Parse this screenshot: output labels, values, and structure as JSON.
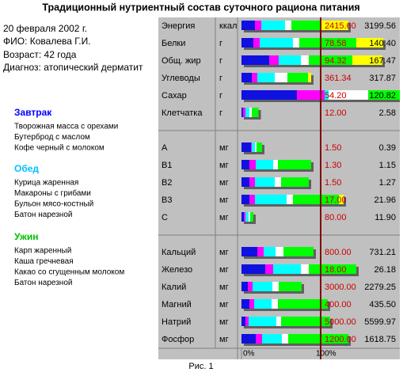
{
  "title": "Традиционный нутриентный состав суточного рациона питания",
  "patient": {
    "date": "20 февраля 2002 г.",
    "name": "ФИО: Ковалева Г.И.",
    "age": "Возраст: 42 года",
    "diagnosis": "Диагноз: атопический дерматит"
  },
  "meals": [
    {
      "name": "Завтрак",
      "color": "#0000ff",
      "items": [
        "Творожная масса с орехами",
        "Бутерброд с маслом",
        "Кофе черный с молоком"
      ]
    },
    {
      "name": "Обед",
      "color": "#00c0ff",
      "items": [
        "Курица жаренная",
        "Макароны с грибами",
        "Бульон мясо-костный",
        "Батон нарезной"
      ]
    },
    {
      "name": "Ужин",
      "color": "#00c000",
      "items": [
        "Карп жаренный",
        "Каша гречневая",
        "Какао со сгущенным молоком",
        "Батон нарезной"
      ]
    }
  ],
  "caption": "Рис. 1",
  "chart_data": {
    "type": "bar",
    "categories": [
      "Энергия",
      "Белки",
      "Общ. жир",
      "Углеводы",
      "Сахар",
      "Клетчатка",
      "A",
      "B1",
      "B2",
      "B3",
      "C",
      "Кальций",
      "Железо",
      "Калий",
      "Магний",
      "Натрий",
      "Фосфор"
    ],
    "units": [
      "ккал",
      "г",
      "г",
      "г",
      "г",
      "г",
      "мг",
      "мг",
      "мг",
      "мг",
      "мг",
      "мг",
      "мг",
      "мг",
      "мг",
      "мг",
      "мг"
    ],
    "norm_labels": [
      "2415.60",
      "78.58",
      "94.32",
      "361.34",
      "54.20",
      "12.00",
      "1.50",
      "1.30",
      "1.50",
      "17.00",
      "80.00",
      "800.00",
      "18.00",
      "3000.00",
      "400.00",
      "5000.00",
      "1200.00"
    ],
    "actual_labels": [
      "3199.56",
      "140.40",
      "167.47",
      "317.87",
      "120.82",
      "2.58",
      "0.39",
      "1.15",
      "1.27",
      "21.96",
      "11.90",
      "731.21",
      "26.18",
      "2279.25",
      "435.50",
      "5599.97",
      "1618.75"
    ],
    "series": [
      {
        "color": "#1010e0",
        "values": [
          17,
          15,
          35,
          13,
          70,
          2,
          12,
          10,
          10,
          10,
          3,
          20,
          30,
          8,
          10,
          5,
          18
        ]
      },
      {
        "color": "#ff00ff",
        "values": [
          8,
          8,
          12,
          7,
          35,
          3,
          1,
          8,
          7,
          7,
          2,
          8,
          10,
          6,
          6,
          4,
          8
        ]
      },
      {
        "color": "#00ffff",
        "values": [
          30,
          42,
          28,
          22,
          5,
          5,
          4,
          22,
          25,
          40,
          4,
          15,
          35,
          25,
          22,
          35,
          25
        ]
      },
      {
        "color": "#ffffff",
        "values": [
          8,
          8,
          10,
          16,
          50,
          3,
          2,
          6,
          8,
          8,
          2,
          10,
          10,
          8,
          8,
          6,
          8
        ]
      },
      {
        "color": "#00ff00",
        "values": [
          37,
          72,
          55,
          26,
          63,
          8.5,
          7,
          42,
          35,
          58,
          4,
          38,
          60,
          29,
          63,
          62,
          76
        ]
      },
      {
        "color": "#ffff00",
        "values": [
          35,
          34,
          38,
          4,
          null,
          null,
          null,
          null,
          null,
          6,
          null,
          null,
          null,
          null,
          null,
          null,
          null
        ]
      }
    ],
    "xlim": [
      0,
      100
    ],
    "xticks": [
      {
        "value": 0,
        "label": "0%"
      },
      {
        "value": 100,
        "label": "100%"
      }
    ],
    "norm_color": "#cc0000",
    "line_color": "#800000"
  }
}
